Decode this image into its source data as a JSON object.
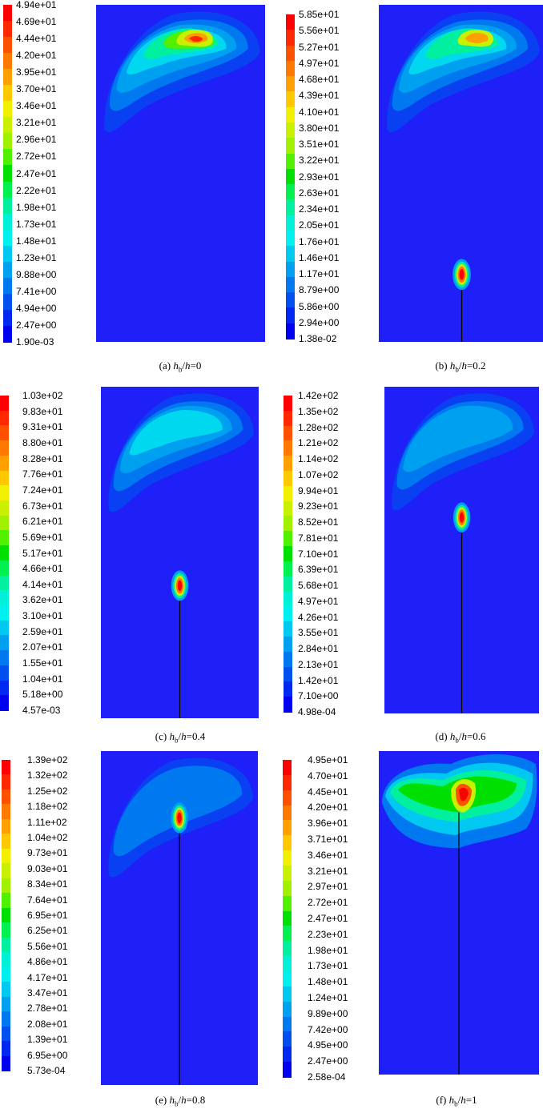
{
  "panels": [
    {
      "id": "a",
      "caption": {
        "label": "(a)",
        "var": "h",
        "sub": "b",
        "den": "h",
        "value": "=0"
      },
      "colorbar": [
        "4.94e+01",
        "4.69e+01",
        "4.44e+01",
        "4.20e+01",
        "3.95e+01",
        "3.70e+01",
        "3.46e+01",
        "3.21e+01",
        "2.96e+01",
        "2.72e+01",
        "2.47e+01",
        "2.22e+01",
        "1.98e+01",
        "1.73e+01",
        "1.48e+01",
        "1.23e+01",
        "9.88e+00",
        "7.41e+00",
        "4.94e+00",
        "2.47e+00",
        "1.90e-03"
      ],
      "crack": null
    },
    {
      "id": "b",
      "caption": {
        "label": "(b)",
        "var": "h",
        "sub": "b",
        "den": "h",
        "value": "=0.2"
      },
      "colorbar": [
        "5.85e+01",
        "5.56e+01",
        "5.27e+01",
        "4.97e+01",
        "4.68e+01",
        "4.39e+01",
        "4.10e+01",
        "3.80e+01",
        "3.51e+01",
        "3.22e+01",
        "2.93e+01",
        "2.63e+01",
        "2.34e+01",
        "2.05e+01",
        "1.76e+01",
        "1.46e+01",
        "1.17e+01",
        "8.79e+00",
        "5.86e+00",
        "2.94e+00",
        "1.38e-02"
      ],
      "crack": 0.2
    },
    {
      "id": "c",
      "caption": {
        "label": "(c)",
        "var": "h",
        "sub": "b",
        "den": "h",
        "value": "=0.4"
      },
      "colorbar": [
        "1.03e+02",
        "9.83e+01",
        "9.31e+01",
        "8.80e+01",
        "8.28e+01",
        "7.76e+01",
        "7.24e+01",
        "6.73e+01",
        "6.21e+01",
        "5.69e+01",
        "5.17e+01",
        "4.66e+01",
        "4.14e+01",
        "3.62e+01",
        "3.10e+01",
        "2.59e+01",
        "2.07e+01",
        "1.55e+01",
        "1.04e+01",
        "5.18e+00",
        "4.57e-03"
      ],
      "crack": 0.4
    },
    {
      "id": "d",
      "caption": {
        "label": "(d)",
        "var": "h",
        "sub": "b",
        "den": "h",
        "value": "=0.6"
      },
      "colorbar": [
        "1.42e+02",
        "1.35e+02",
        "1.28e+02",
        "1.21e+02",
        "1.14e+02",
        "1.07e+02",
        "9.94e+01",
        "9.23e+01",
        "8.52e+01",
        "7.81e+01",
        "7.10e+01",
        "6.39e+01",
        "5.68e+01",
        "4.97e+01",
        "4.26e+01",
        "3.55e+01",
        "2.84e+01",
        "2.13e+01",
        "1.42e+01",
        "7.10e+00",
        "4.98e-04"
      ],
      "crack": 0.6
    },
    {
      "id": "e",
      "caption": {
        "label": "(e)",
        "var": "h",
        "sub": "b",
        "den": "h",
        "value": "=0.8"
      },
      "colorbar": [
        "1.39e+02",
        "1.32e+02",
        "1.25e+02",
        "1.18e+02",
        "1.11e+02",
        "1.04e+02",
        "9.73e+01",
        "9.03e+01",
        "8.34e+01",
        "7.64e+01",
        "6.95e+01",
        "6.25e+01",
        "5.56e+01",
        "4.86e+01",
        "4.17e+01",
        "3.47e+01",
        "2.78e+01",
        "2.08e+01",
        "1.39e+01",
        "6.95e+00",
        "5.73e-04"
      ],
      "crack": 0.8
    },
    {
      "id": "f",
      "caption": {
        "label": "(f)",
        "var": "h",
        "sub": "b",
        "den": "h",
        "value": "=1"
      },
      "colorbar": [
        "4.95e+01",
        "4.70e+01",
        "4.45e+01",
        "4.20e+01",
        "3.96e+01",
        "3.71e+01",
        "3.46e+01",
        "3.21e+01",
        "2.97e+01",
        "2.72e+01",
        "2.47e+01",
        "2.23e+01",
        "1.98e+01",
        "1.73e+01",
        "1.48e+01",
        "1.24e+01",
        "9.89e+00",
        "7.42e+00",
        "4.95e+00",
        "2.47e+00",
        "2.58e-04"
      ],
      "crack": 1.0
    }
  ],
  "colors": {
    "field": "#1f1ff8",
    "scale": [
      "#ff0000",
      "#ff2800",
      "#ff5000",
      "#ff7800",
      "#ffa000",
      "#ffc800",
      "#f0f000",
      "#c8f000",
      "#a0f000",
      "#50f000",
      "#00e000",
      "#00f050",
      "#00f0a0",
      "#00f0d8",
      "#00f0f0",
      "#00c8f0",
      "#00a0f0",
      "#0078f0",
      "#0050f0",
      "#0028f0",
      "#0000f0"
    ]
  }
}
